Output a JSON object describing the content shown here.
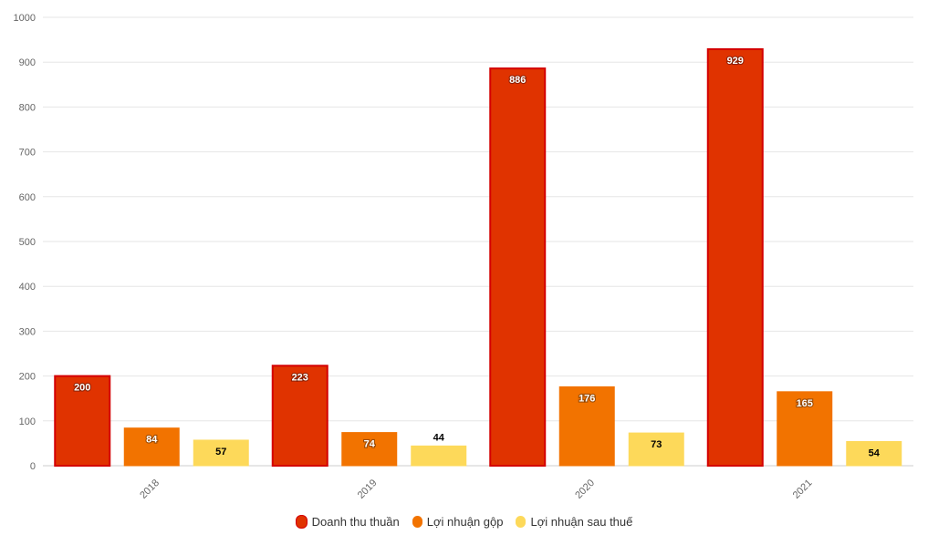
{
  "chart_data": {
    "type": "bar",
    "categories": [
      "2018",
      "2019",
      "2020",
      "2021"
    ],
    "series": [
      {
        "name": "Doanh thu thuần",
        "values": [
          200,
          223,
          886,
          929
        ],
        "color": "#e03300",
        "border": "#d40000",
        "label_color": "#ffffff"
      },
      {
        "name": "Lợi nhuận gộp",
        "values": [
          84,
          74,
          176,
          165
        ],
        "color": "#f27300",
        "border": "#f27300",
        "label_color": "#ffffff"
      },
      {
        "name": "Lợi nhuận sau thuế",
        "values": [
          57,
          44,
          73,
          54
        ],
        "color": "#fdd95a",
        "border": "#fdd95a",
        "label_color": "#000000"
      }
    ],
    "y_ticks": [
      "0",
      "100",
      "200",
      "300",
      "400",
      "500",
      "600",
      "700",
      "800",
      "900",
      "1000"
    ],
    "ylim": [
      0,
      1000
    ],
    "grid": true,
    "legend_position": "bottom-center",
    "title": "",
    "xlabel": "",
    "ylabel": ""
  }
}
